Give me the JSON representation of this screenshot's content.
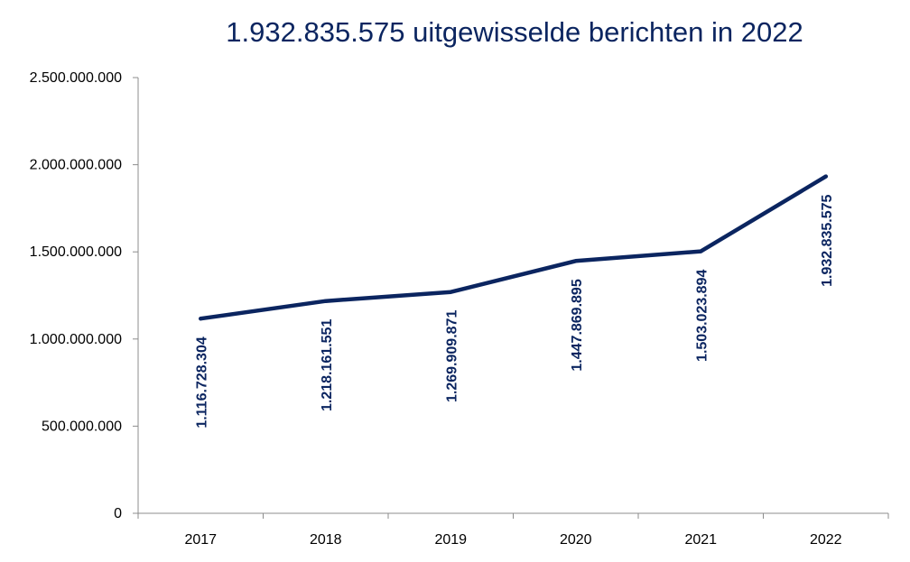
{
  "chart_data": {
    "type": "line",
    "title": "1.932.835.575 uitgewisselde berichten in 2022",
    "xlabel": "",
    "ylabel": "",
    "categories": [
      "2017",
      "2018",
      "2019",
      "2020",
      "2021",
      "2022"
    ],
    "values": [
      1116728304,
      1218161551,
      1269909871,
      1447869895,
      1503023894,
      1932835575
    ],
    "data_labels": [
      "1.116.728.304",
      "1.218.161.551",
      "1.269.909.871",
      "1.447.869.895",
      "1.503.023.894",
      "1.932.835.575"
    ],
    "ylim": [
      0,
      2500000000
    ],
    "y_ticks": [
      0,
      500000000,
      1000000000,
      1500000000,
      2000000000,
      2500000000
    ],
    "y_tick_labels": [
      "0",
      "500.000.000",
      "1.000.000.000",
      "1.500.000.000",
      "2.000.000.000",
      "2.500.000.000"
    ],
    "grid": false,
    "legend": "none",
    "line_color": "#0b2560"
  }
}
